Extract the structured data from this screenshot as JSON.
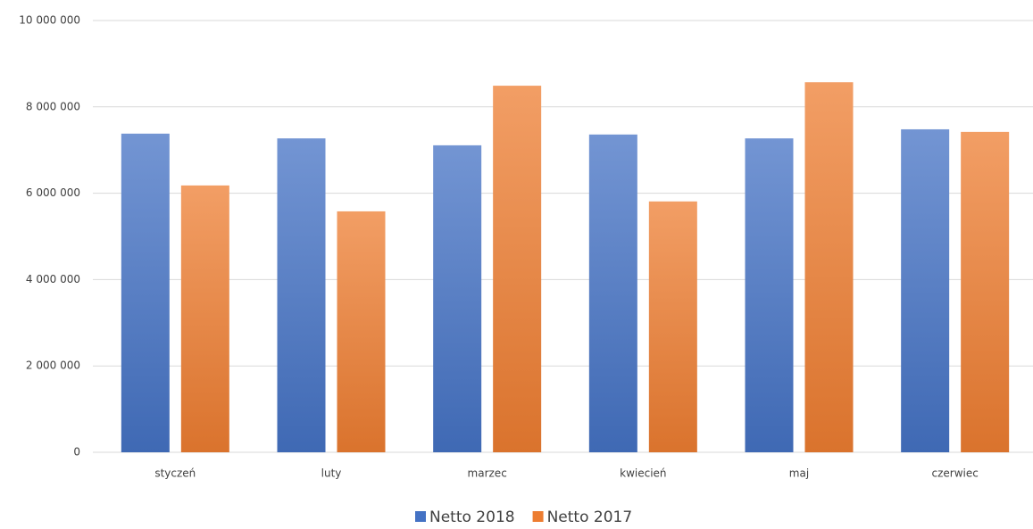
{
  "chart_data": {
    "type": "bar",
    "categories": [
      "styczeń",
      "luty",
      "marzec",
      "kwiecień",
      "maj",
      "czerwiec"
    ],
    "series": [
      {
        "name": "Netto 2018",
        "color": "#4472c4",
        "values": [
          7380000,
          7270000,
          7110000,
          7360000,
          7270000,
          7480000
        ]
      },
      {
        "name": "Netto 2017",
        "color": "#ed7d31",
        "values": [
          6180000,
          5580000,
          8490000,
          5810000,
          8570000,
          7420000
        ]
      }
    ],
    "ylim": [
      0,
      10000000
    ],
    "yticks": [
      0,
      {
        "value": 2000000,
        "label": "2 000 000"
      },
      {
        "value": 4000000,
        "label": "4 000 000"
      },
      {
        "value": 6000000,
        "label": "6 000 000"
      },
      {
        "value": 8000000,
        "label": "8 000 000"
      },
      {
        "value": 10000000,
        "label": "10 000 000"
      }
    ],
    "grid": true,
    "legend": "bottom"
  }
}
